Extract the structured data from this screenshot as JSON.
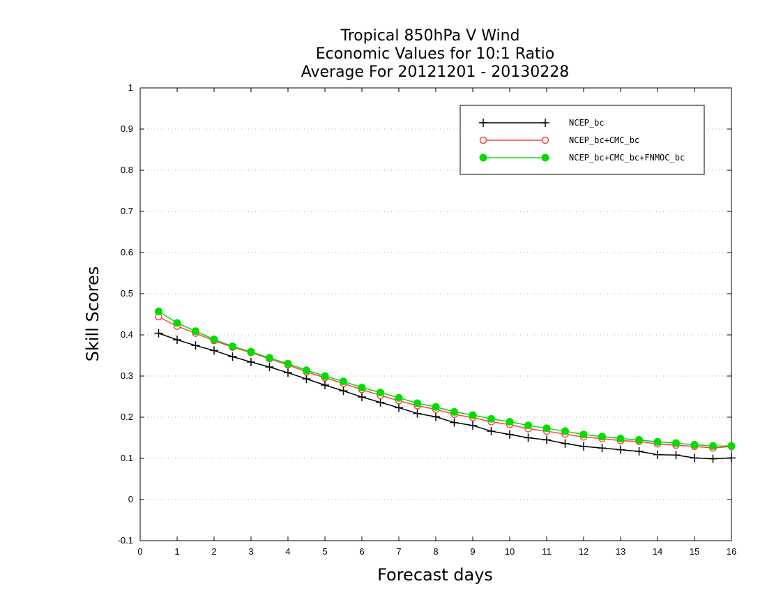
{
  "chart_data": {
    "type": "line",
    "title": [
      "Tropical 850hPa V Wind",
      "Economic Values for 10:1 Ratio",
      "Average For 20121201 - 20130228"
    ],
    "xlabel": "Forecast days",
    "ylabel": "Skill Scores",
    "xlim": [
      0,
      16
    ],
    "ylim": [
      -0.1,
      1
    ],
    "xticks": [
      "0",
      "1",
      "2",
      "3",
      "4",
      "5",
      "6",
      "7",
      "8",
      "9",
      "10",
      "11",
      "12",
      "13",
      "14",
      "15",
      "16"
    ],
    "yticks": [
      "-0.1",
      "0",
      "0.1",
      "0.2",
      "0.3",
      "0.4",
      "0.5",
      "0.6",
      "0.7",
      "0.8",
      "0.9",
      "1"
    ],
    "grid": true,
    "legend_position": "top-right",
    "x": [
      0.5,
      1,
      1.5,
      2,
      2.5,
      3,
      3.5,
      4,
      4.5,
      5,
      5.5,
      6,
      6.5,
      7,
      7.5,
      8,
      8.5,
      9,
      9.5,
      10,
      10.5,
      11,
      11.5,
      12,
      12.5,
      13,
      13.5,
      14,
      14.5,
      15,
      15.5,
      16
    ],
    "series": [
      {
        "name": "NCEP_bc",
        "color": "#000000",
        "marker": "plus",
        "values": [
          0.404,
          0.388,
          0.374,
          0.362,
          0.347,
          0.334,
          0.322,
          0.308,
          0.293,
          0.278,
          0.264,
          0.249,
          0.236,
          0.223,
          0.209,
          0.201,
          0.187,
          0.18,
          0.166,
          0.158,
          0.15,
          0.145,
          0.136,
          0.129,
          0.125,
          0.121,
          0.117,
          0.109,
          0.108,
          0.101,
          0.099,
          0.101
        ]
      },
      {
        "name": "NCEP_bc+CMC_bc",
        "color": "#ff4040",
        "marker": "open-circle",
        "values": [
          0.444,
          0.421,
          0.404,
          0.386,
          0.37,
          0.357,
          0.342,
          0.327,
          0.31,
          0.296,
          0.282,
          0.267,
          0.253,
          0.24,
          0.228,
          0.219,
          0.207,
          0.199,
          0.189,
          0.182,
          0.172,
          0.166,
          0.159,
          0.152,
          0.148,
          0.143,
          0.141,
          0.135,
          0.132,
          0.129,
          0.125,
          0.129
        ]
      },
      {
        "name": "NCEP_bc+CMC_bc+FNMOC_bc",
        "color": "#00dd00",
        "marker": "filled-circle",
        "values": [
          0.457,
          0.429,
          0.409,
          0.389,
          0.372,
          0.359,
          0.344,
          0.33,
          0.314,
          0.3,
          0.287,
          0.272,
          0.26,
          0.247,
          0.234,
          0.225,
          0.213,
          0.205,
          0.196,
          0.189,
          0.18,
          0.173,
          0.166,
          0.158,
          0.153,
          0.148,
          0.145,
          0.14,
          0.137,
          0.133,
          0.13,
          0.13
        ]
      }
    ]
  }
}
